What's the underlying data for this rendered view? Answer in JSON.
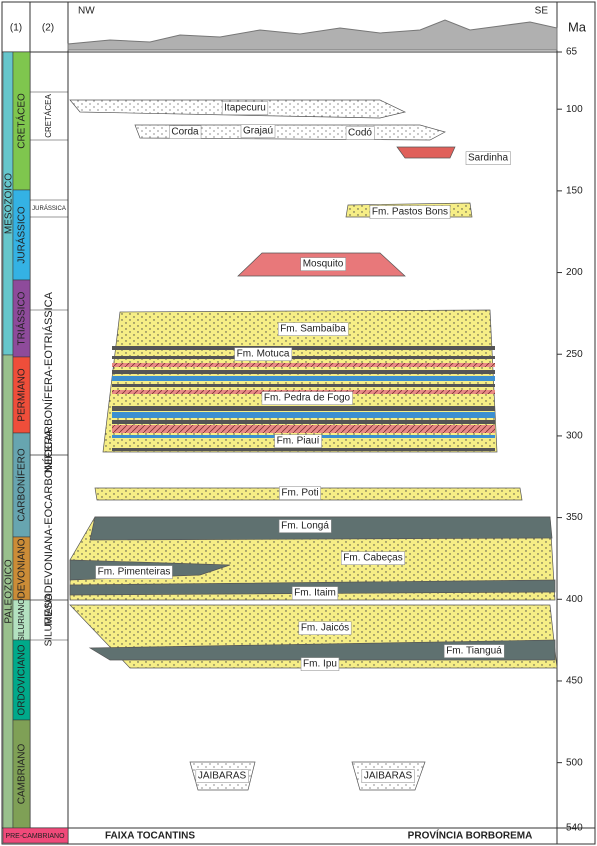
{
  "header": {
    "col1": "(1)",
    "col2": "(2)",
    "nw": "NW",
    "se": "SE",
    "axis_unit": "Ma"
  },
  "axis": {
    "ticks": [
      65,
      100,
      150,
      200,
      250,
      300,
      350,
      400,
      450,
      500,
      540
    ]
  },
  "eras": [
    "MESOZOICO",
    "PALEOZOICO"
  ],
  "periods": [
    "CRETÁCEO",
    "JURÁSSICO",
    "TRIÁSSICO",
    "PERMIANO",
    "CARBONÍFERO",
    "DEVONIANO",
    "SILURIANO",
    "ORDOVICIANO",
    "CAMBRIANO",
    "PRE-CAMBRIANO"
  ],
  "sequences": [
    "CRETÁCEA",
    "JURÁSSICA",
    "NEOCARBONÍFERA-EOTRIÁSSICA",
    "MESODEVONIANA-EOCARBONÍFERA",
    "SILURIANA"
  ],
  "units": [
    "Itapecuru",
    "Corda",
    "Grajaú",
    "Codó",
    "Sardinha",
    "Fm. Pastos Bons",
    "Mosquito",
    "Fm. Sambaíba",
    "Fm. Motuca",
    "Fm. Pedra de Fogo",
    "Fm. Piauí",
    "Fm. Poti",
    "Fm. Longá",
    "Fm. Cabeças",
    "Fm. Pimenteiras",
    "Fm. Itaim",
    "Fm. Jaicós",
    "Fm. Tianguá",
    "Fm. Ipu"
  ],
  "jaibaras": [
    "JAIBARAS",
    "JAIBARAS"
  ],
  "footer": {
    "left": "FAIXA TOCANTINS",
    "right": "PROVÍNCIA BORBOREMA"
  }
}
